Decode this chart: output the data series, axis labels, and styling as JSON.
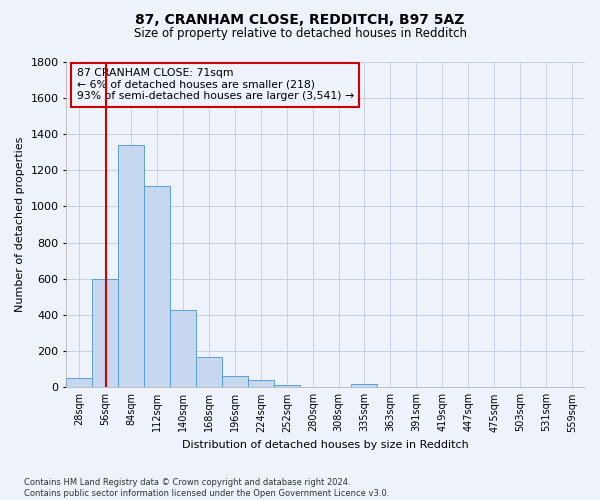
{
  "title": "87, CRANHAM CLOSE, REDDITCH, B97 5AZ",
  "subtitle": "Size of property relative to detached houses in Redditch",
  "xlabel": "Distribution of detached houses by size in Redditch",
  "ylabel": "Number of detached properties",
  "bar_edges": [
    28,
    56,
    84,
    112,
    140,
    168,
    196,
    224,
    252,
    280,
    308,
    335,
    363,
    391,
    419,
    447,
    475,
    503,
    531,
    559,
    587
  ],
  "bar_heights": [
    50,
    600,
    1340,
    1110,
    425,
    170,
    60,
    40,
    15,
    0,
    0,
    20,
    0,
    0,
    0,
    0,
    0,
    0,
    0,
    0
  ],
  "bar_color": "#c5d8f0",
  "bar_edge_color": "#5a9fd4",
  "property_line_x": 71,
  "property_line_color": "#cc0000",
  "annotation_text": "87 CRANHAM CLOSE: 71sqm\n← 6% of detached houses are smaller (218)\n93% of semi-detached houses are larger (3,541) →",
  "annotation_box_color": "#cc0000",
  "ylim": [
    0,
    1800
  ],
  "yticks": [
    0,
    200,
    400,
    600,
    800,
    1000,
    1200,
    1400,
    1600,
    1800
  ],
  "footnote": "Contains HM Land Registry data © Crown copyright and database right 2024.\nContains public sector information licensed under the Open Government Licence v3.0.",
  "bg_color": "#eef2fb",
  "grid_color": "#c8d0e0"
}
